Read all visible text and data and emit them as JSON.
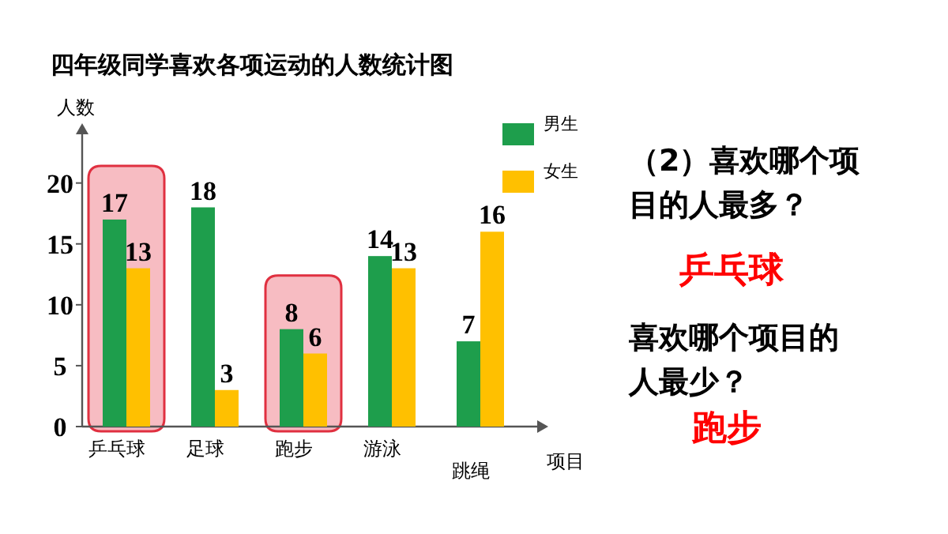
{
  "chart_data": {
    "type": "bar",
    "title": "四年级同学喜欢各项运动的人数统计图",
    "xlabel": "项目",
    "ylabel": "人数",
    "categories": [
      "乒乓球",
      "足球",
      "跑步",
      "游泳",
      "跳绳"
    ],
    "series": [
      {
        "name": "男生",
        "color": "#1e9e4c",
        "values": [
          17,
          18,
          8,
          14,
          7
        ]
      },
      {
        "name": "女生",
        "color": "#ffc000",
        "values": [
          13,
          3,
          6,
          13,
          16
        ]
      }
    ],
    "ylim": [
      0,
      24
    ],
    "yticks": [
      0,
      5,
      10,
      15,
      20
    ],
    "data_labels": true,
    "legend": "top right",
    "bands": [
      {
        "axis": "x",
        "from": "乒乓球",
        "to": "乒乓球",
        "color": "#f4a0a8"
      },
      {
        "axis": "x",
        "from": "跑步",
        "to": "跑步",
        "color": "#f4a0a8"
      }
    ],
    "annotations": [
      "（2）喜欢哪个项目的人最多？",
      "乒乓球",
      "喜欢哪个项目的人最少？",
      "跑步"
    ]
  }
}
